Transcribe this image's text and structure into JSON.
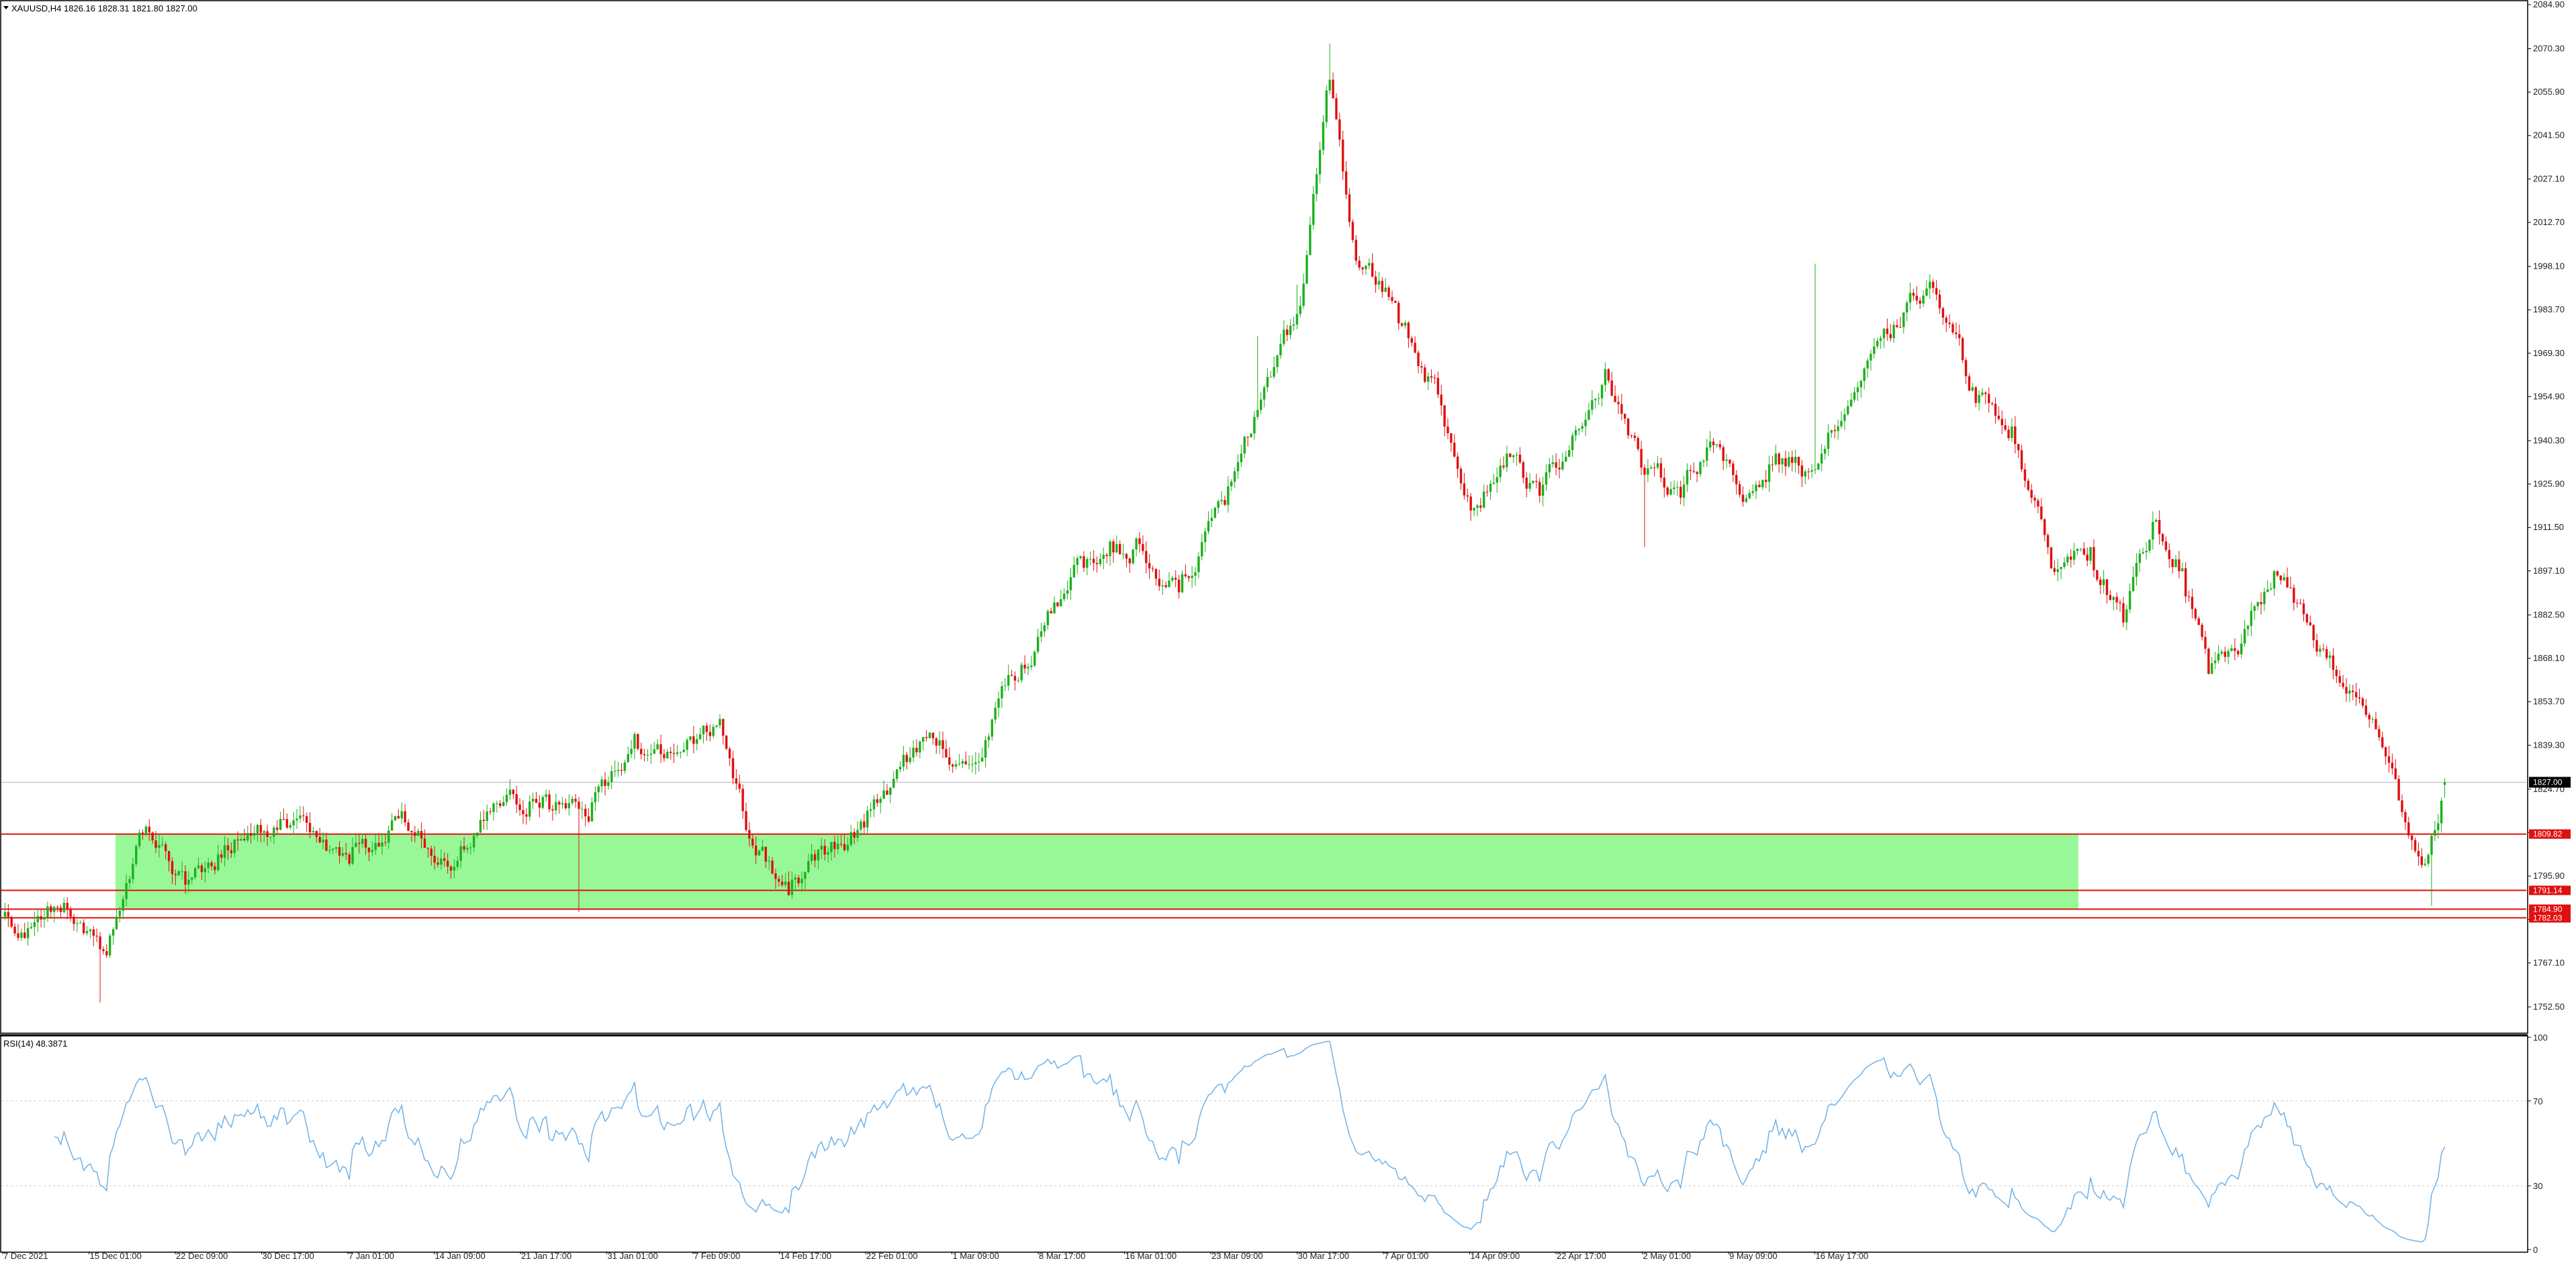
{
  "symbol_header": {
    "menu_icon": "triangle-down-icon",
    "text": "XAUUSD,H4  1826.16 1828.31 1821.80 1827.00"
  },
  "rsi_header": {
    "text": "RSI(14) 48.3871"
  },
  "colors": {
    "background": "#ffffff",
    "bull_candle": "#1db01d",
    "bear_candle": "#e01010",
    "zone_fill": "#98f898",
    "level_line": "#e01010",
    "current_price_line": "#c8c8c8",
    "rsi_line": "#6fb2e8",
    "rsi_level_line": "#c8c8c8",
    "current_price_tag": "#000000",
    "level_tag": "#e01010"
  },
  "chart_data": [
    {
      "type": "candlestick",
      "timeframe": "H4",
      "symbol": "XAUUSD",
      "ylim": [
        1744.0,
        2086.0
      ],
      "y_ticks": [
        "2084.90",
        "2070.30",
        "2055.90",
        "2041.50",
        "2027.10",
        "2012.70",
        "1998.10",
        "1983.70",
        "1969.30",
        "1954.90",
        "1940.30",
        "1925.90",
        "1911.50",
        "1897.10",
        "1882.50",
        "1868.10",
        "1853.70",
        "1839.30",
        "1824.70",
        "1810.30",
        "1795.90",
        "1781.50",
        "1767.10",
        "1752.50"
      ],
      "x_ticks": [
        "7 Dec 2021",
        "15 Dec 01:00",
        "22 Dec 09:00",
        "30 Dec 17:00",
        "7 Jan 01:00",
        "14 Jan 09:00",
        "21 Jan 17:00",
        "31 Jan 01:00",
        "7 Feb 09:00",
        "14 Feb 17:00",
        "22 Feb 01:00",
        "1 Mar 09:00",
        "8 Mar 17:00",
        "16 Mar 01:00",
        "23 Mar 09:00",
        "30 Mar 17:00",
        "7 Apr 01:00",
        "14 Apr 09:00",
        "22 Apr 17:00",
        "2 May 01:00",
        "9 May 09:00",
        "16 May 17:00"
      ],
      "close_anchors": [
        [
          0,
          1784
        ],
        [
          8,
          1779
        ],
        [
          18,
          1787
        ],
        [
          30,
          1771
        ],
        [
          42,
          1810
        ],
        [
          55,
          1793
        ],
        [
          70,
          1808
        ],
        [
          90,
          1816
        ],
        [
          105,
          1800
        ],
        [
          120,
          1815
        ],
        [
          135,
          1799
        ],
        [
          150,
          1820
        ],
        [
          165,
          1823
        ],
        [
          178,
          1814
        ],
        [
          192,
          1843
        ],
        [
          206,
          1837
        ],
        [
          218,
          1848
        ],
        [
          228,
          1806
        ],
        [
          238,
          1794
        ],
        [
          250,
          1803
        ],
        [
          262,
          1812
        ],
        [
          280,
          1842
        ],
        [
          294,
          1833
        ],
        [
          310,
          1866
        ],
        [
          325,
          1895
        ],
        [
          336,
          1902
        ],
        [
          346,
          1906
        ],
        [
          358,
          1890
        ],
        [
          372,
          1919
        ],
        [
          384,
          1958
        ],
        [
          395,
          1985
        ],
        [
          404,
          2060
        ],
        [
          412,
          2000
        ],
        [
          424,
          1986
        ],
        [
          438,
          1952
        ],
        [
          448,
          1918
        ],
        [
          458,
          1936
        ],
        [
          468,
          1922
        ],
        [
          478,
          1942
        ],
        [
          488,
          1964
        ],
        [
          500,
          1929
        ],
        [
          510,
          1925
        ],
        [
          520,
          1940
        ],
        [
          530,
          1920
        ],
        [
          540,
          1936
        ],
        [
          550,
          1930
        ],
        [
          565,
          1958
        ],
        [
          577,
          1978
        ],
        [
          587,
          1993
        ],
        [
          600,
          1958
        ],
        [
          612,
          1945
        ],
        [
          624,
          1898
        ],
        [
          636,
          1905
        ],
        [
          646,
          1880
        ],
        [
          656,
          1914
        ],
        [
          664,
          1898
        ],
        [
          672,
          1863
        ],
        [
          682,
          1873
        ],
        [
          692,
          1897
        ],
        [
          702,
          1880
        ],
        [
          712,
          1860
        ],
        [
          722,
          1848
        ],
        [
          730,
          1821
        ],
        [
          738,
          1800
        ],
        [
          744,
          1827
        ]
      ],
      "total_candles": 745,
      "last_candle": {
        "open": 1826.16,
        "high": 1828.31,
        "low": 1821.8,
        "close": 1827.0
      },
      "current_price": 1827.0,
      "current_price_label": "1827.00",
      "horizontal_levels": [
        1809.82,
        1791.14,
        1784.9,
        1782.03
      ],
      "level_labels": [
        "1809.82",
        "1791.14",
        "1784.90",
        "1782.03"
      ],
      "support_zone": {
        "from": 1784.9,
        "to": 1809.82
      },
      "grid": false
    },
    {
      "type": "line",
      "name": "RSI(14)",
      "value": 48.3871,
      "ylim": [
        0,
        100
      ],
      "y_ticks": [
        "100",
        "70",
        "30",
        "0"
      ],
      "levels": [
        70,
        30
      ]
    }
  ]
}
